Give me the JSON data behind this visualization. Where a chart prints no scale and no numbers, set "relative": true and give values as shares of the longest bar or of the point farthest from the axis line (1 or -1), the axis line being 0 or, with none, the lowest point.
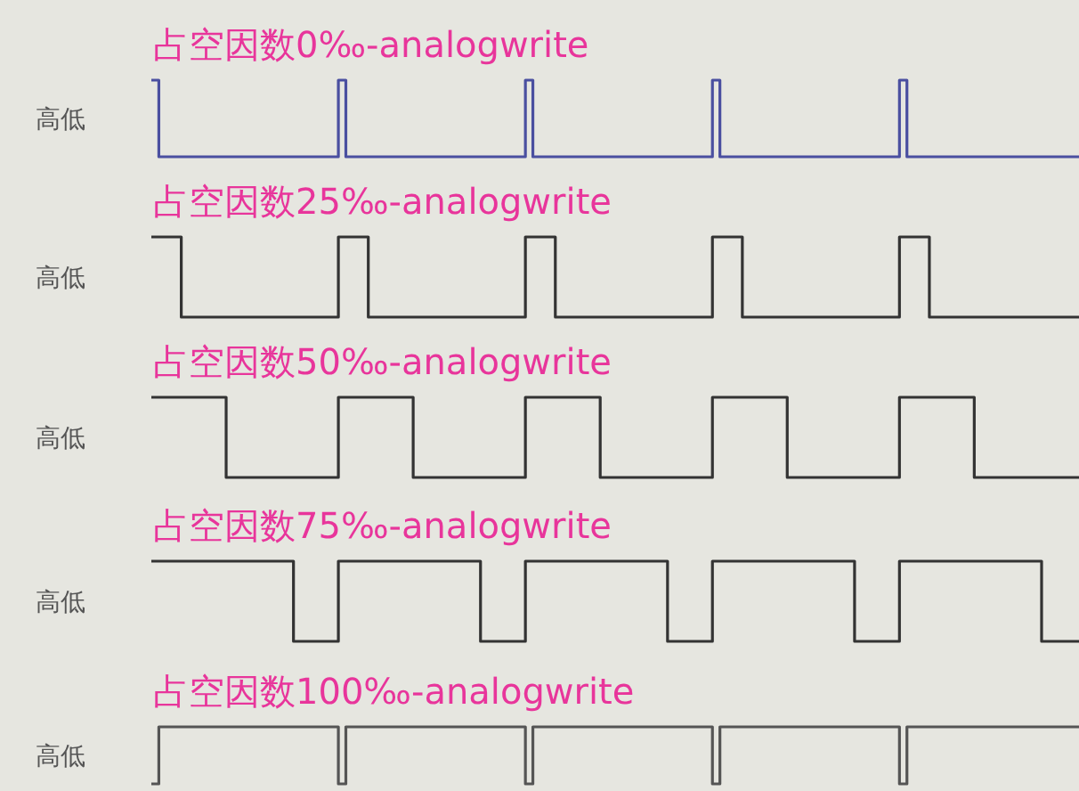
{
  "chart_data": [
    {
      "type": "step",
      "title": "占空因数0‰-analogwrite",
      "ylabel": "高低",
      "relative": true,
      "categories": [
        null,
        null,
        null,
        null,
        null,
        null,
        null,
        null,
        null,
        null,
        null,
        null,
        null,
        null,
        null,
        null,
        null,
        null,
        null,
        null,
        null,
        null,
        null,
        null,
        null,
        null,
        null,
        null,
        null,
        null,
        null,
        null,
        null,
        null,
        null,
        null,
        null,
        null,
        null,
        null,
        null,
        null,
        null,
        null,
        null,
        null,
        null,
        null,
        null,
        null,
        null,
        null,
        null,
        null,
        null,
        null,
        null,
        null,
        null,
        null,
        null,
        null,
        null,
        null,
        null,
        null,
        null,
        null,
        null,
        null,
        null,
        null,
        null,
        null,
        null,
        null,
        null,
        null,
        null,
        null,
        null,
        null,
        null,
        null,
        null,
        null,
        null,
        null,
        null,
        null,
        null,
        null,
        null,
        null,
        null,
        null,
        null,
        null,
        null,
        null,
        null,
        null,
        null,
        null,
        null,
        null,
        null,
        null,
        null,
        null,
        null,
        null,
        null,
        null,
        null,
        null,
        null,
        null,
        null,
        null,
        null,
        null,
        null,
        null,
        null
      ],
      "color": "#4a4fa0",
      "values": [
        1,
        0,
        0,
        0,
        0,
        0,
        0,
        0,
        0,
        0,
        0,
        0,
        0,
        0,
        0,
        0,
        0,
        0,
        0,
        0,
        0,
        0,
        0,
        0,
        0,
        1,
        0,
        0,
        0,
        0,
        0,
        0,
        0,
        0,
        0,
        0,
        0,
        0,
        0,
        0,
        0,
        0,
        0,
        0,
        0,
        0,
        0,
        0,
        0,
        0,
        1,
        0,
        0,
        0,
        0,
        0,
        0,
        0,
        0,
        0,
        0,
        0,
        0,
        0,
        0,
        0,
        0,
        0,
        0,
        0,
        0,
        0,
        0,
        0,
        0,
        1,
        0,
        0,
        0,
        0,
        0,
        0,
        0,
        0,
        0,
        0,
        0,
        0,
        0,
        0,
        0,
        0,
        0,
        0,
        0,
        0,
        0,
        0,
        0,
        0,
        1,
        0,
        0,
        0,
        0,
        0,
        0,
        0,
        0,
        0,
        0,
        0,
        0,
        0,
        0,
        0,
        0,
        0,
        0,
        0,
        0,
        0,
        0,
        0,
        0
      ]
    },
    {
      "type": "step",
      "title": "占空因数25‰-analogwrite",
      "ylabel": "高低",
      "relative": true,
      "categories": [
        null,
        null,
        null,
        null,
        null,
        null,
        null,
        null,
        null,
        null,
        null,
        null,
        null,
        null,
        null,
        null,
        null,
        null,
        null,
        null,
        null,
        null,
        null,
        null,
        null,
        null,
        null,
        null,
        null,
        null,
        null,
        null,
        null,
        null,
        null,
        null,
        null,
        null,
        null,
        null,
        null,
        null,
        null,
        null,
        null,
        null,
        null,
        null,
        null,
        null,
        null,
        null,
        null,
        null,
        null,
        null,
        null,
        null,
        null,
        null,
        null,
        null,
        null,
        null,
        null,
        null,
        null,
        null,
        null,
        null,
        null,
        null,
        null,
        null,
        null,
        null,
        null,
        null,
        null,
        null,
        null,
        null,
        null,
        null,
        null,
        null,
        null,
        null,
        null,
        null,
        null,
        null,
        null,
        null,
        null,
        null,
        null,
        null,
        null,
        null,
        null,
        null,
        null,
        null,
        null,
        null,
        null,
        null,
        null,
        null,
        null,
        null,
        null,
        null,
        null,
        null,
        null,
        null,
        null,
        null,
        null,
        null,
        null,
        null,
        null
      ],
      "color": "#333333",
      "values": [
        1,
        1,
        1,
        1,
        0,
        0,
        0,
        0,
        0,
        0,
        0,
        0,
        0,
        0,
        0,
        0,
        0,
        0,
        0,
        0,
        0,
        0,
        0,
        0,
        0,
        1,
        1,
        1,
        1,
        0,
        0,
        0,
        0,
        0,
        0,
        0,
        0,
        0,
        0,
        0,
        0,
        0,
        0,
        0,
        0,
        0,
        0,
        0,
        0,
        0,
        1,
        1,
        1,
        1,
        0,
        0,
        0,
        0,
        0,
        0,
        0,
        0,
        0,
        0,
        0,
        0,
        0,
        0,
        0,
        0,
        0,
        0,
        0,
        0,
        0,
        1,
        1,
        1,
        1,
        0,
        0,
        0,
        0,
        0,
        0,
        0,
        0,
        0,
        0,
        0,
        0,
        0,
        0,
        0,
        0,
        0,
        0,
        0,
        0,
        0,
        1,
        1,
        1,
        1,
        0,
        0,
        0,
        0,
        0,
        0,
        0,
        0,
        0,
        0,
        0,
        0,
        0,
        0,
        0,
        0,
        0,
        0,
        0,
        0,
        0
      ]
    },
    {
      "type": "step",
      "title": "占空因数50‰-analogwrite",
      "ylabel": "高低",
      "relative": true,
      "categories": [
        null,
        null,
        null,
        null,
        null,
        null,
        null,
        null,
        null,
        null,
        null,
        null,
        null,
        null,
        null,
        null,
        null,
        null,
        null,
        null,
        null,
        null,
        null,
        null,
        null,
        null,
        null,
        null,
        null,
        null,
        null,
        null,
        null,
        null,
        null,
        null,
        null,
        null,
        null,
        null,
        null,
        null,
        null,
        null,
        null,
        null,
        null,
        null,
        null,
        null,
        null,
        null,
        null,
        null,
        null,
        null,
        null,
        null,
        null,
        null,
        null,
        null,
        null,
        null,
        null,
        null,
        null,
        null,
        null,
        null,
        null,
        null,
        null,
        null,
        null,
        null,
        null,
        null,
        null,
        null,
        null,
        null,
        null,
        null,
        null,
        null,
        null,
        null,
        null,
        null,
        null,
        null,
        null,
        null,
        null,
        null,
        null,
        null,
        null,
        null,
        null,
        null,
        null,
        null,
        null,
        null,
        null,
        null,
        null,
        null,
        null,
        null,
        null,
        null,
        null,
        null,
        null,
        null,
        null,
        null,
        null,
        null,
        null,
        null,
        null
      ],
      "color": "#333333",
      "values": [
        1,
        1,
        1,
        1,
        1,
        1,
        1,
        1,
        1,
        1,
        0,
        0,
        0,
        0,
        0,
        0,
        0,
        0,
        0,
        0,
        0,
        0,
        0,
        0,
        0,
        1,
        1,
        1,
        1,
        1,
        1,
        1,
        1,
        1,
        1,
        0,
        0,
        0,
        0,
        0,
        0,
        0,
        0,
        0,
        0,
        0,
        0,
        0,
        0,
        0,
        1,
        1,
        1,
        1,
        1,
        1,
        1,
        1,
        1,
        1,
        0,
        0,
        0,
        0,
        0,
        0,
        0,
        0,
        0,
        0,
        0,
        0,
        0,
        0,
        0,
        1,
        1,
        1,
        1,
        1,
        1,
        1,
        1,
        1,
        1,
        0,
        0,
        0,
        0,
        0,
        0,
        0,
        0,
        0,
        0,
        0,
        0,
        0,
        0,
        0,
        1,
        1,
        1,
        1,
        1,
        1,
        1,
        1,
        1,
        1,
        0,
        0,
        0,
        0,
        0,
        0,
        0,
        0,
        0,
        0,
        0,
        0,
        0,
        0,
        0
      ]
    },
    {
      "type": "step",
      "title": "占空因数75‰-analogwrite",
      "ylabel": "高低",
      "relative": true,
      "categories": [
        null,
        null,
        null,
        null,
        null,
        null,
        null,
        null,
        null,
        null,
        null,
        null,
        null,
        null,
        null,
        null,
        null,
        null,
        null,
        null,
        null,
        null,
        null,
        null,
        null,
        null,
        null,
        null,
        null,
        null,
        null,
        null,
        null,
        null,
        null,
        null,
        null,
        null,
        null,
        null,
        null,
        null,
        null,
        null,
        null,
        null,
        null,
        null,
        null,
        null,
        null,
        null,
        null,
        null,
        null,
        null,
        null,
        null,
        null,
        null,
        null,
        null,
        null,
        null,
        null,
        null,
        null,
        null,
        null,
        null,
        null,
        null,
        null,
        null,
        null,
        null,
        null,
        null,
        null,
        null,
        null,
        null,
        null,
        null,
        null,
        null,
        null,
        null,
        null,
        null,
        null,
        null,
        null,
        null,
        null,
        null,
        null,
        null,
        null,
        null,
        null,
        null,
        null,
        null,
        null,
        null,
        null,
        null,
        null,
        null,
        null,
        null,
        null,
        null,
        null,
        null,
        null,
        null,
        null,
        null,
        null,
        null,
        null,
        null,
        null
      ],
      "color": "#333333",
      "values": [
        1,
        1,
        1,
        1,
        1,
        1,
        1,
        1,
        1,
        1,
        1,
        1,
        1,
        1,
        1,
        1,
        1,
        1,
        1,
        0,
        0,
        0,
        0,
        0,
        0,
        1,
        1,
        1,
        1,
        1,
        1,
        1,
        1,
        1,
        1,
        1,
        1,
        1,
        1,
        1,
        1,
        1,
        1,
        1,
        0,
        0,
        0,
        0,
        0,
        0,
        1,
        1,
        1,
        1,
        1,
        1,
        1,
        1,
        1,
        1,
        1,
        1,
        1,
        1,
        1,
        1,
        1,
        1,
        1,
        0,
        0,
        0,
        0,
        0,
        0,
        1,
        1,
        1,
        1,
        1,
        1,
        1,
        1,
        1,
        1,
        1,
        1,
        1,
        1,
        1,
        1,
        1,
        1,
        1,
        0,
        0,
        0,
        0,
        0,
        0,
        1,
        1,
        1,
        1,
        1,
        1,
        1,
        1,
        1,
        1,
        1,
        1,
        1,
        1,
        1,
        1,
        1,
        1,
        1,
        0,
        0,
        0,
        0,
        0,
        0
      ]
    },
    {
      "type": "step",
      "title": "占空因数100‰-analogwrite",
      "ylabel": "高低",
      "relative": true,
      "categories": [
        null,
        null,
        null,
        null,
        null,
        null,
        null,
        null,
        null,
        null,
        null,
        null,
        null,
        null,
        null,
        null,
        null,
        null,
        null,
        null,
        null,
        null,
        null,
        null,
        null,
        null,
        null,
        null,
        null,
        null,
        null,
        null,
        null,
        null,
        null,
        null,
        null,
        null,
        null,
        null,
        null,
        null,
        null,
        null,
        null,
        null,
        null,
        null,
        null,
        null,
        null,
        null,
        null,
        null,
        null,
        null,
        null,
        null,
        null,
        null,
        null,
        null,
        null,
        null,
        null,
        null,
        null,
        null,
        null,
        null,
        null,
        null,
        null,
        null,
        null,
        null,
        null,
        null,
        null,
        null,
        null,
        null,
        null,
        null,
        null,
        null,
        null,
        null,
        null,
        null,
        null,
        null,
        null,
        null,
        null,
        null,
        null,
        null,
        null,
        null,
        null,
        null,
        null,
        null,
        null,
        null,
        null,
        null,
        null,
        null,
        null,
        null,
        null,
        null,
        null,
        null,
        null,
        null,
        null,
        null,
        null,
        null,
        null,
        null,
        null
      ],
      "color": "#555555",
      "values": [
        0,
        1,
        1,
        1,
        1,
        1,
        1,
        1,
        1,
        1,
        1,
        1,
        1,
        1,
        1,
        1,
        1,
        1,
        1,
        1,
        1,
        1,
        1,
        1,
        1,
        0,
        1,
        1,
        1,
        1,
        1,
        1,
        1,
        1,
        1,
        1,
        1,
        1,
        1,
        1,
        1,
        1,
        1,
        1,
        1,
        1,
        1,
        1,
        1,
        1,
        0,
        1,
        1,
        1,
        1,
        1,
        1,
        1,
        1,
        1,
        1,
        1,
        1,
        1,
        1,
        1,
        1,
        1,
        1,
        1,
        1,
        1,
        1,
        1,
        1,
        0,
        1,
        1,
        1,
        1,
        1,
        1,
        1,
        1,
        1,
        1,
        1,
        1,
        1,
        1,
        1,
        1,
        1,
        1,
        1,
        1,
        1,
        1,
        1,
        1,
        0,
        1,
        1,
        1,
        1,
        1,
        1,
        1,
        1,
        1,
        1,
        1,
        1,
        1,
        1,
        1,
        1,
        1,
        1,
        1,
        1,
        1,
        1,
        1,
        1
      ]
    }
  ]
}
